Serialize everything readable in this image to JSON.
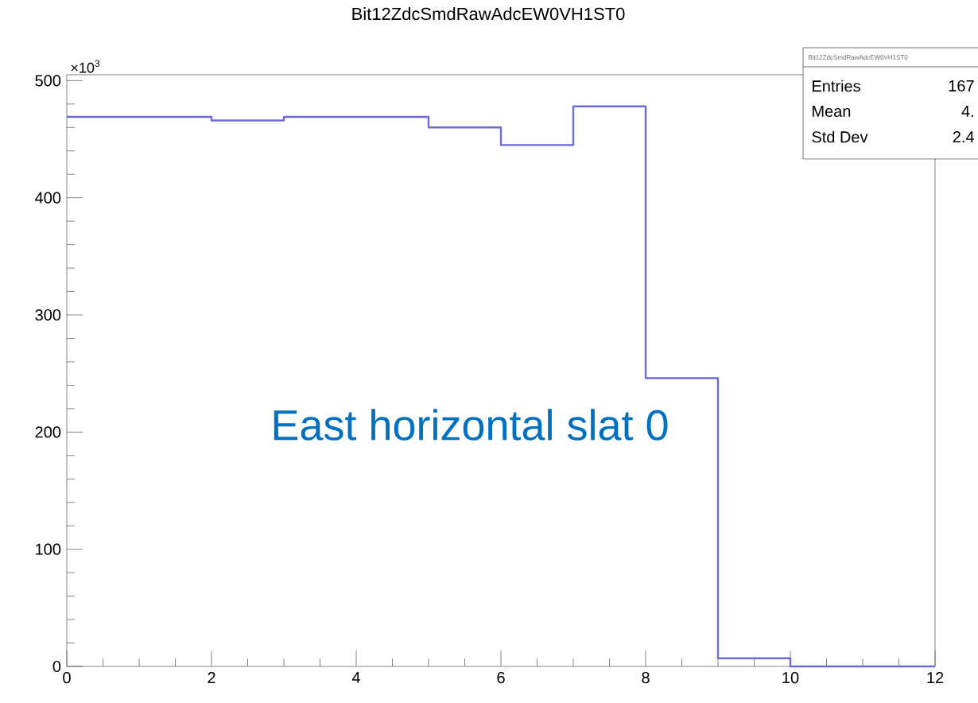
{
  "chart_data": {
    "type": "histogram",
    "title": "Bit12ZdcSmdRawAdcEW0VH1ST0",
    "bins": [
      0,
      1,
      2,
      3,
      4,
      5,
      6,
      7,
      8,
      9,
      10,
      11,
      12
    ],
    "values": [
      469,
      469,
      466,
      469,
      469,
      460,
      445,
      478,
      246,
      7,
      0,
      0
    ],
    "color": "#6b6bd9",
    "xlim": [
      0,
      12
    ],
    "xticks": [
      0,
      2,
      4,
      6,
      8,
      10,
      12
    ],
    "ylim": [
      0,
      505
    ],
    "yticks": [
      0,
      100,
      200,
      300,
      400,
      500
    ],
    "grid": false,
    "annotations": [
      "×10$^{3}$",
      "East horizontal slat 0",
      "Bit12ZdcSmdRawAdcEW0VH1ST0",
      "Entries",
      "167",
      "Mean",
      "4.",
      "Std Dev",
      "2.4"
    ]
  }
}
